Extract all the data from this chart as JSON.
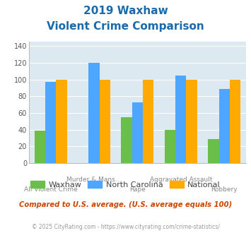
{
  "title_line1": "2019 Waxhaw",
  "title_line2": "Violent Crime Comparison",
  "categories": [
    "All Violent Crime",
    "Murder & Mans...",
    "Rape",
    "Aggravated Assault",
    "Robbery"
  ],
  "waxhaw": [
    39,
    0,
    55,
    40,
    29
  ],
  "north_carolina": [
    97,
    120,
    73,
    105,
    89
  ],
  "national": [
    100,
    100,
    100,
    100,
    100
  ],
  "waxhaw_color": "#6abf4b",
  "nc_color": "#4da6ff",
  "national_color": "#ffaa00",
  "ylim": [
    0,
    145
  ],
  "yticks": [
    0,
    20,
    40,
    60,
    80,
    100,
    120,
    140
  ],
  "background_color": "#dce9f0",
  "title_color": "#1a6aab",
  "footer_text": "Compared to U.S. average. (U.S. average equals 100)",
  "copyright_text": "© 2025 CityRating.com - https://www.cityrating.com/crime-statistics/",
  "footer_color": "#cc4400",
  "copyright_color": "#999999",
  "bar_width": 0.25,
  "group_positions": [
    0,
    1,
    2,
    3,
    4
  ]
}
